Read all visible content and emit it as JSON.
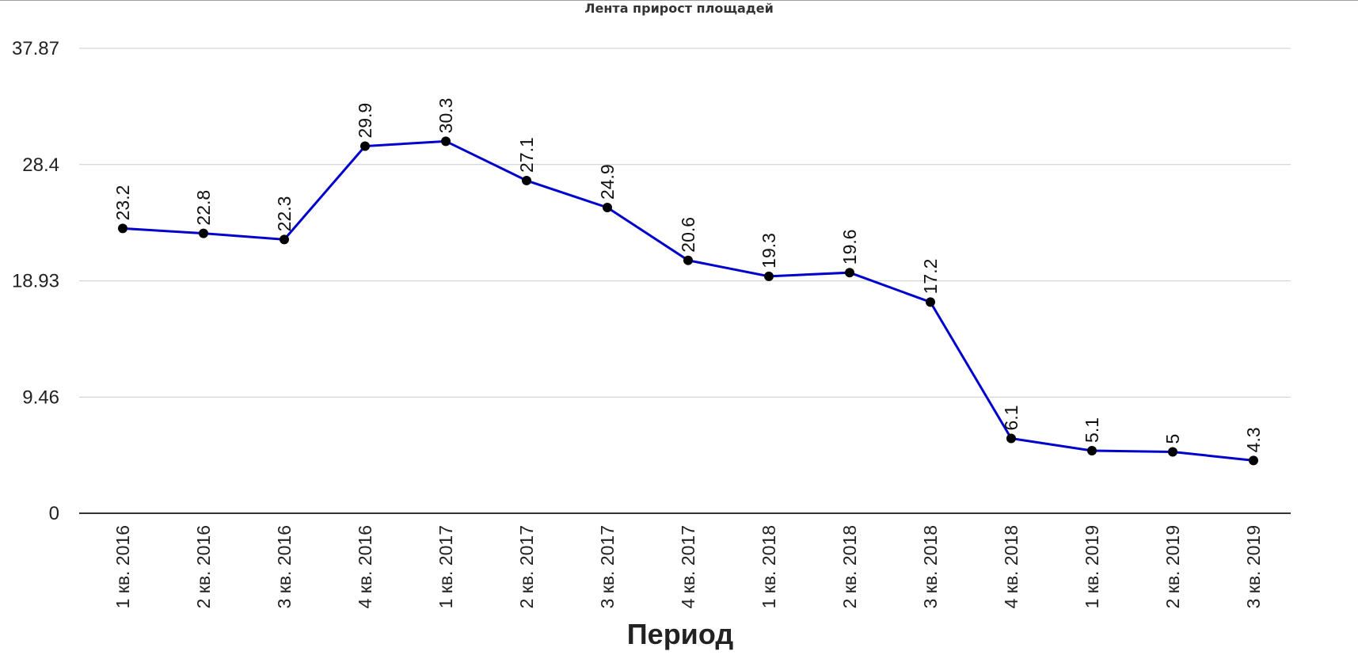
{
  "chart_data": {
    "type": "line",
    "title": "Лента прирост площадей",
    "xlabel": "Период",
    "ylabel": "",
    "ylim": [
      0,
      37.87
    ],
    "yticks": [
      "0",
      "9.46",
      "18.93",
      "28.4",
      "37.87"
    ],
    "categories": [
      "1 кв. 2016",
      "2 кв. 2016",
      "3 кв. 2016",
      "4 кв. 2016",
      "1 кв. 2017",
      "2 кв. 2017",
      "3 кв. 2017",
      "4 кв. 2017",
      "1 кв. 2018",
      "2 кв. 2018",
      "3 кв. 2018",
      "4 кв. 2018",
      "1 кв. 2019",
      "2 кв. 2019",
      "3 кв. 2019"
    ],
    "series": [
      {
        "values": [
          23.2,
          22.8,
          22.3,
          29.9,
          30.3,
          27.1,
          24.9,
          20.6,
          19.3,
          19.6,
          17.2,
          6.1,
          5.1,
          5,
          4.3
        ],
        "color": "#0000cc"
      }
    ],
    "grid": true,
    "legend": "none"
  }
}
